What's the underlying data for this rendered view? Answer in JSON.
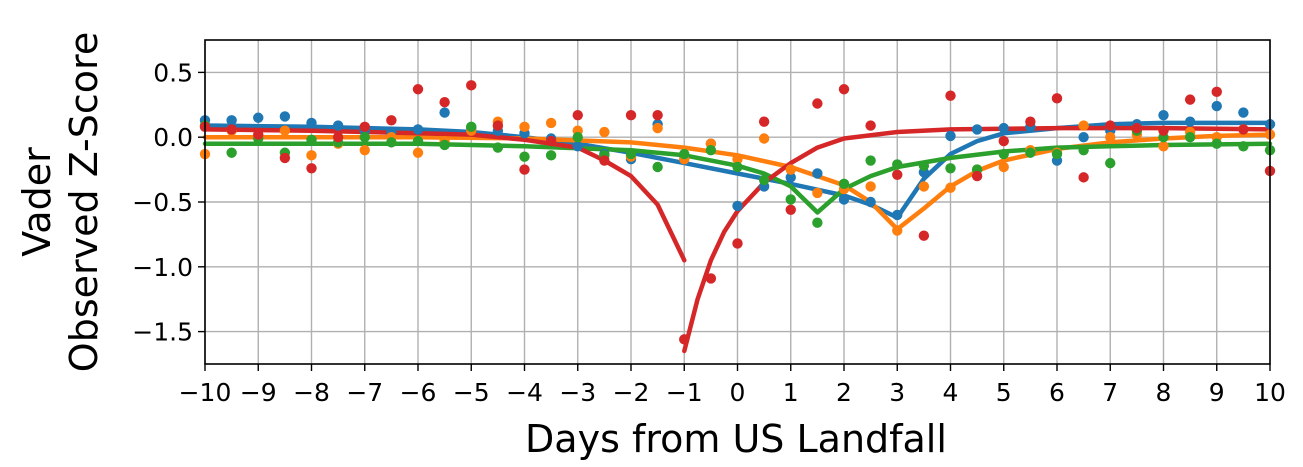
{
  "chart_data": {
    "type": "scatter",
    "xlabel": "Days from US Landfall",
    "ylabel": [
      "Vader",
      "Observed Z-Score"
    ],
    "xlim": [
      -10,
      10
    ],
    "ylim": [
      -1.75,
      0.75
    ],
    "xticks": [
      "−10",
      "−9",
      "−8",
      "−7",
      "−6",
      "−5",
      "−4",
      "−3",
      "−2",
      "−1",
      "0",
      "1",
      "2",
      "3",
      "4",
      "5",
      "6",
      "7",
      "8",
      "9",
      "10"
    ],
    "yticks": [
      "−1.5",
      "−1.0",
      "−0.5",
      "0.0",
      "0.5"
    ],
    "grid": true,
    "series": [
      {
        "color": "#1f77b4",
        "points": [
          [
            -10,
            0.13
          ],
          [
            -9.5,
            0.13
          ],
          [
            -9,
            0.15
          ],
          [
            -8.5,
            0.16
          ],
          [
            -8,
            0.11
          ],
          [
            -7.5,
            0.09
          ],
          [
            -7,
            0.05
          ],
          [
            -6.5,
            0.04
          ],
          [
            -6,
            0.06
          ],
          [
            -5.5,
            0.19
          ],
          [
            -5,
            0.07
          ],
          [
            -4.5,
            0.05
          ],
          [
            -4,
            0.03
          ],
          [
            -3.5,
            -0.01
          ],
          [
            -3,
            -0.07
          ],
          [
            -2.5,
            -0.13
          ],
          [
            -2,
            -0.17
          ],
          [
            -1.5,
            0.1
          ],
          [
            -1,
            -0.15
          ],
          [
            -0.5,
            -0.05
          ],
          [
            0,
            -0.53
          ],
          [
            0.5,
            -0.38
          ],
          [
            1,
            -0.31
          ],
          [
            1.5,
            -0.28
          ],
          [
            2,
            -0.48
          ],
          [
            2.5,
            -0.5
          ],
          [
            3,
            -0.6
          ],
          [
            3.5,
            -0.27
          ],
          [
            4,
            0.01
          ],
          [
            4.5,
            0.06
          ],
          [
            5,
            0.07
          ],
          [
            5.5,
            0.08
          ],
          [
            6,
            -0.18
          ],
          [
            6.5,
            0.0
          ],
          [
            7,
            0.05
          ],
          [
            7.5,
            0.1
          ],
          [
            8,
            0.17
          ],
          [
            8.5,
            0.12
          ],
          [
            9,
            0.24
          ],
          [
            9.5,
            0.19
          ],
          [
            10,
            0.1
          ]
        ],
        "fit": [
          [
            -10,
            0.09
          ],
          [
            -8,
            0.08
          ],
          [
            -6,
            0.06
          ],
          [
            -5,
            0.04
          ],
          [
            -4,
            0.0
          ],
          [
            -3,
            -0.05
          ],
          [
            -2,
            -0.12
          ],
          [
            -1,
            -0.2
          ],
          [
            0,
            -0.28
          ],
          [
            1,
            -0.36
          ],
          [
            2,
            -0.45
          ],
          [
            2.5,
            -0.52
          ],
          [
            3,
            -0.62
          ],
          [
            3.5,
            -0.32
          ],
          [
            4,
            -0.13
          ],
          [
            4.5,
            -0.03
          ],
          [
            5,
            0.03
          ],
          [
            6,
            0.07
          ],
          [
            7,
            0.1
          ],
          [
            8,
            0.11
          ],
          [
            10,
            0.11
          ]
        ]
      },
      {
        "color": "#ff7f0e",
        "points": [
          [
            -10,
            -0.13
          ],
          [
            -9.5,
            0.05
          ],
          [
            -9,
            0.0
          ],
          [
            -8.5,
            0.05
          ],
          [
            -8,
            -0.14
          ],
          [
            -7.5,
            -0.05
          ],
          [
            -7,
            -0.1
          ],
          [
            -6.5,
            0.0
          ],
          [
            -6,
            -0.12
          ],
          [
            -5.5,
            -0.03
          ],
          [
            -5,
            0.05
          ],
          [
            -4.5,
            0.12
          ],
          [
            -4,
            0.08
          ],
          [
            -3.5,
            0.11
          ],
          [
            -3,
            0.05
          ],
          [
            -2.5,
            0.04
          ],
          [
            -2,
            -0.15
          ],
          [
            -1.5,
            0.07
          ],
          [
            -1,
            -0.17
          ],
          [
            -0.5,
            -0.05
          ],
          [
            0,
            -0.17
          ],
          [
            0.5,
            -0.01
          ],
          [
            1,
            -0.25
          ],
          [
            1.5,
            -0.43
          ],
          [
            2,
            -0.4
          ],
          [
            2.5,
            -0.38
          ],
          [
            3,
            -0.72
          ],
          [
            3.5,
            -0.38
          ],
          [
            4,
            -0.39
          ],
          [
            4.5,
            -0.25
          ],
          [
            5,
            -0.23
          ],
          [
            5.5,
            -0.1
          ],
          [
            6,
            -0.12
          ],
          [
            6.5,
            0.09
          ],
          [
            7,
            0.0
          ],
          [
            7.5,
            0.02
          ],
          [
            8,
            -0.07
          ],
          [
            8.5,
            0.04
          ],
          [
            9,
            0.0
          ],
          [
            9.5,
            0.06
          ],
          [
            10,
            0.02
          ]
        ],
        "fit": [
          [
            -10,
            0.0
          ],
          [
            -6,
            0.0
          ],
          [
            -4,
            -0.01
          ],
          [
            -2,
            -0.04
          ],
          [
            -1,
            -0.08
          ],
          [
            0,
            -0.14
          ],
          [
            1,
            -0.23
          ],
          [
            2,
            -0.37
          ],
          [
            2.5,
            -0.5
          ],
          [
            3,
            -0.71
          ],
          [
            3.5,
            -0.55
          ],
          [
            4,
            -0.38
          ],
          [
            4.5,
            -0.26
          ],
          [
            5,
            -0.18
          ],
          [
            6,
            -0.09
          ],
          [
            7,
            -0.04
          ],
          [
            8,
            -0.01
          ],
          [
            9,
            0.01
          ],
          [
            10,
            0.02
          ]
        ]
      },
      {
        "color": "#2ca02c",
        "points": [
          [
            -10,
            0.09
          ],
          [
            -9.5,
            -0.12
          ],
          [
            -9,
            -0.01
          ],
          [
            -8.5,
            -0.12
          ],
          [
            -8,
            -0.02
          ],
          [
            -7.5,
            -0.04
          ],
          [
            -7,
            0.0
          ],
          [
            -6.5,
            -0.04
          ],
          [
            -6,
            -0.03
          ],
          [
            -5.5,
            -0.06
          ],
          [
            -5,
            0.08
          ],
          [
            -4.5,
            -0.08
          ],
          [
            -4,
            -0.15
          ],
          [
            -3.5,
            -0.14
          ],
          [
            -3,
            0.0
          ],
          [
            -2.5,
            -0.14
          ],
          [
            -2,
            -0.13
          ],
          [
            -1.5,
            -0.23
          ],
          [
            -1,
            -0.13
          ],
          [
            -0.5,
            -0.1
          ],
          [
            0,
            -0.23
          ],
          [
            0.5,
            -0.33
          ],
          [
            1,
            -0.48
          ],
          [
            1.5,
            -0.66
          ],
          [
            2,
            -0.36
          ],
          [
            2.5,
            -0.18
          ],
          [
            3,
            -0.21
          ],
          [
            3.5,
            -0.22
          ],
          [
            4,
            -0.24
          ],
          [
            4.5,
            -0.25
          ],
          [
            5,
            -0.13
          ],
          [
            5.5,
            -0.12
          ],
          [
            6,
            -0.13
          ],
          [
            6.5,
            -0.1
          ],
          [
            7,
            -0.2
          ],
          [
            7.5,
            0.05
          ],
          [
            8,
            0.0
          ],
          [
            8.5,
            0.0
          ],
          [
            9,
            -0.05
          ],
          [
            9.5,
            -0.07
          ],
          [
            10,
            -0.1
          ]
        ],
        "fit": [
          [
            -10,
            -0.05
          ],
          [
            -6,
            -0.05
          ],
          [
            -4,
            -0.07
          ],
          [
            -2,
            -0.1
          ],
          [
            -1,
            -0.14
          ],
          [
            0,
            -0.22
          ],
          [
            0.5,
            -0.28
          ],
          [
            1,
            -0.38
          ],
          [
            1.5,
            -0.58
          ],
          [
            2,
            -0.4
          ],
          [
            2.5,
            -0.3
          ],
          [
            3,
            -0.23
          ],
          [
            4,
            -0.16
          ],
          [
            5,
            -0.11
          ],
          [
            6,
            -0.08
          ],
          [
            7,
            -0.07
          ],
          [
            8,
            -0.06
          ],
          [
            10,
            -0.05
          ]
        ]
      },
      {
        "color": "#d62728",
        "points": [
          [
            -10,
            0.08
          ],
          [
            -9.5,
            0.06
          ],
          [
            -9,
            0.02
          ],
          [
            -8.5,
            -0.16
          ],
          [
            -8,
            -0.24
          ],
          [
            -7.5,
            0.0
          ],
          [
            -7,
            0.08
          ],
          [
            -6.5,
            0.13
          ],
          [
            -6,
            0.37
          ],
          [
            -5.5,
            0.27
          ],
          [
            -5,
            0.4
          ],
          [
            -4.5,
            0.09
          ],
          [
            -4,
            -0.25
          ],
          [
            -3.5,
            -0.03
          ],
          [
            -3,
            0.17
          ],
          [
            -2.5,
            -0.18
          ],
          [
            -2,
            0.17
          ],
          [
            -1.5,
            0.17
          ],
          [
            -1,
            -1.56
          ],
          [
            -0.5,
            -1.09
          ],
          [
            0,
            -0.82
          ],
          [
            0.5,
            0.12
          ],
          [
            1,
            -0.56
          ],
          [
            1.5,
            0.26
          ],
          [
            2,
            0.37
          ],
          [
            2.5,
            0.09
          ],
          [
            3,
            -0.29
          ],
          [
            3.5,
            -0.76
          ],
          [
            4,
            0.32
          ],
          [
            4.5,
            -0.3
          ],
          [
            5,
            -0.03
          ],
          [
            5.5,
            0.12
          ],
          [
            6,
            0.3
          ],
          [
            6.5,
            -0.31
          ],
          [
            7,
            0.09
          ],
          [
            7.5,
            0.07
          ],
          [
            8,
            0.05
          ],
          [
            8.5,
            0.29
          ],
          [
            9,
            0.35
          ],
          [
            9.5,
            0.06
          ],
          [
            10,
            -0.26
          ]
        ],
        "fit_before": [
          [
            -10,
            0.06
          ],
          [
            -8,
            0.05
          ],
          [
            -6,
            0.03
          ],
          [
            -5,
            0.02
          ],
          [
            -4,
            -0.02
          ],
          [
            -3,
            -0.08
          ],
          [
            -2.5,
            -0.18
          ],
          [
            -2,
            -0.3
          ],
          [
            -1.5,
            -0.52
          ],
          [
            -1,
            -0.95
          ]
        ],
        "fit_after": [
          [
            -1,
            -1.65
          ],
          [
            -0.75,
            -1.25
          ],
          [
            -0.5,
            -0.95
          ],
          [
            -0.25,
            -0.73
          ],
          [
            0,
            -0.57
          ],
          [
            0.5,
            -0.35
          ],
          [
            1,
            -0.2
          ],
          [
            1.5,
            -0.08
          ],
          [
            2,
            -0.01
          ],
          [
            3,
            0.04
          ],
          [
            4,
            0.06
          ],
          [
            6,
            0.07
          ],
          [
            8,
            0.07
          ],
          [
            10,
            0.06
          ]
        ]
      }
    ]
  }
}
